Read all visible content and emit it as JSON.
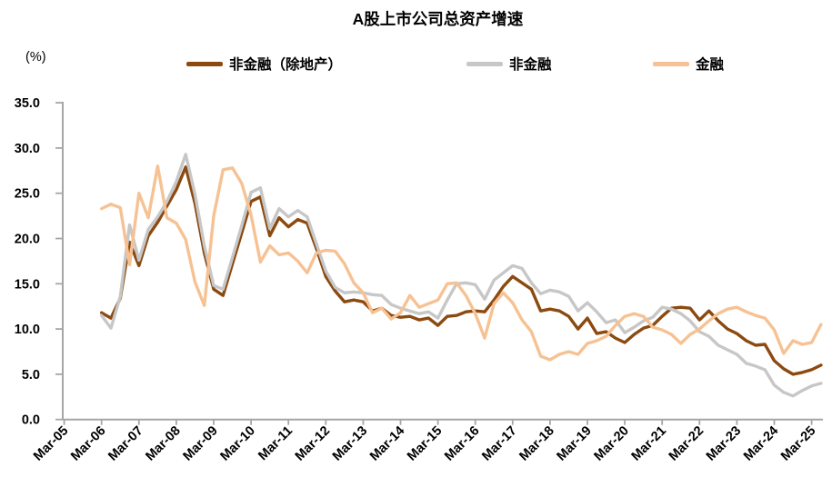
{
  "title": "A股上市公司总资产增速",
  "y_unit_label": "(%)",
  "legend": {
    "items": [
      {
        "label": "非金融（除地产）",
        "color": "#8B4A10"
      },
      {
        "label": "非金融",
        "color": "#C7C7C7"
      },
      {
        "label": "金融",
        "color": "#F6C293"
      }
    ]
  },
  "chart_data": {
    "type": "line",
    "title": "A股上市公司总资产增速",
    "y_axis_unit": "(%)",
    "xlabel": "",
    "ylabel": "",
    "ylim": [
      0,
      35
    ],
    "grid": false,
    "legend_position": "top",
    "axis_color": "#A6A6A6",
    "text_color": "#000000",
    "y_tick_labels": [
      "0.0",
      "5.0",
      "10.0",
      "15.0",
      "20.0",
      "25.0",
      "30.0",
      "35.0"
    ],
    "x_tick_labels": [
      "Mar-05",
      "Mar-06",
      "Mar-07",
      "Mar-08",
      "Mar-09",
      "Mar-10",
      "Mar-11",
      "Mar-12",
      "Mar-13",
      "Mar-14",
      "Mar-15",
      "Mar-16",
      "Mar-17",
      "Mar-18",
      "Mar-19",
      "Mar-20",
      "Mar-21",
      "Mar-22",
      "Mar-23",
      "Mar-24",
      "Mar-25"
    ],
    "x_frequency": "quarterly",
    "series_x_start": "Mar-06",
    "series": [
      {
        "name": "非金融（除地产）",
        "color": "#8B4A10",
        "values": [
          11.8,
          11.2,
          13.4,
          19.6,
          17.0,
          20.3,
          21.8,
          23.6,
          25.4,
          27.9,
          23.9,
          18.4,
          14.4,
          13.7,
          17.2,
          20.6,
          24.1,
          24.6,
          20.3,
          22.3,
          21.3,
          22.1,
          21.7,
          18.9,
          15.8,
          14.2,
          13.0,
          13.2,
          13.0,
          12.0,
          12.3,
          11.5,
          11.3,
          11.4,
          11.0,
          11.2,
          10.4,
          11.4,
          11.5,
          11.9,
          12.0,
          11.9,
          13.2,
          14.7,
          15.8,
          15.1,
          14.4,
          12.0,
          12.2,
          12.0,
          11.4,
          10.0,
          11.2,
          9.5,
          9.7,
          9.0,
          8.5,
          9.4,
          10.1,
          10.4,
          11.4,
          12.3,
          12.4,
          12.3,
          11.0,
          12.0,
          10.9,
          10.0,
          9.5,
          8.7,
          8.2,
          8.3,
          6.5,
          5.6,
          5.0,
          5.2,
          5.5,
          6.0
        ]
      },
      {
        "name": "非金融",
        "color": "#C7C7C7",
        "values": [
          11.5,
          10.1,
          13.6,
          21.5,
          17.6,
          21.0,
          22.4,
          24.1,
          26.3,
          29.3,
          24.9,
          19.2,
          14.8,
          14.4,
          17.9,
          21.4,
          25.1,
          25.6,
          21.1,
          23.3,
          22.4,
          23.1,
          22.4,
          19.4,
          16.4,
          14.6,
          14.0,
          14.1,
          14.0,
          13.8,
          13.7,
          12.7,
          12.3,
          12.0,
          11.7,
          11.9,
          11.2,
          13.2,
          15.0,
          15.1,
          14.9,
          13.3,
          15.4,
          16.2,
          17.0,
          16.7,
          15.1,
          13.9,
          14.3,
          14.1,
          13.6,
          12.0,
          12.9,
          11.9,
          10.7,
          11.0,
          9.6,
          10.2,
          10.9,
          11.3,
          12.4,
          12.2,
          11.7,
          10.9,
          9.7,
          9.2,
          8.2,
          7.7,
          7.2,
          6.2,
          5.9,
          5.5,
          3.8,
          3.0,
          2.6,
          3.2,
          3.7,
          4.0
        ]
      },
      {
        "name": "金融",
        "color": "#F6C293",
        "values": [
          23.3,
          23.8,
          23.4,
          17.1,
          25.0,
          22.3,
          28.0,
          22.3,
          21.7,
          19.9,
          15.2,
          12.6,
          22.5,
          27.6,
          27.8,
          26.1,
          22.6,
          17.4,
          19.2,
          18.2,
          18.4,
          17.5,
          16.2,
          18.4,
          18.7,
          18.6,
          17.2,
          15.1,
          14.0,
          11.8,
          12.3,
          11.1,
          11.8,
          13.7,
          12.4,
          12.8,
          13.2,
          15.0,
          15.1,
          13.7,
          11.7,
          9.0,
          12.8,
          14.0,
          12.9,
          11.0,
          9.7,
          7.0,
          6.6,
          7.2,
          7.5,
          7.2,
          8.4,
          8.7,
          9.2,
          10.4,
          11.4,
          11.7,
          11.4,
          10.2,
          9.9,
          9.4,
          8.4,
          9.4,
          10.0,
          10.9,
          11.7,
          12.2,
          12.4,
          11.9,
          11.5,
          11.2,
          9.9,
          7.3,
          8.7,
          8.3,
          8.5,
          10.5
        ]
      }
    ]
  }
}
